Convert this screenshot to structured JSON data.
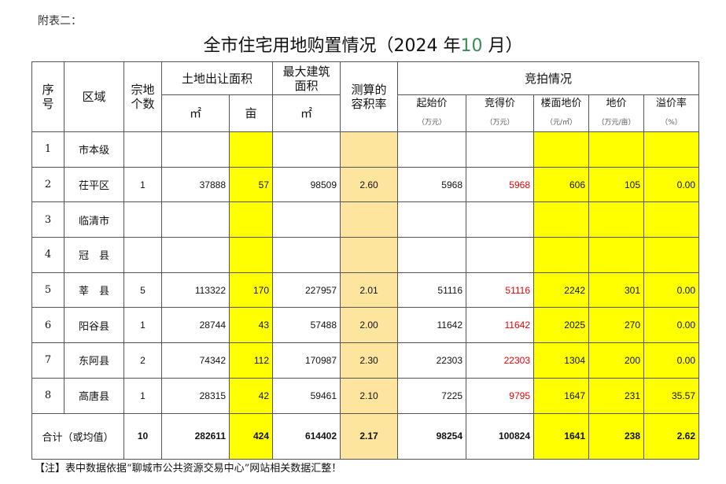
{
  "lead": "附表二：",
  "title": {
    "main": "全市住宅用地购置情况（2024 年",
    "month": "10",
    "suffix": " 月）"
  },
  "headers": {
    "seq": "序号",
    "region": "区域",
    "count": "宗地个数",
    "land_area": "土地出让面积",
    "sqm": "㎡",
    "mu": "亩",
    "max_build": "最大建筑面积",
    "max_build_unit": "㎡",
    "far": "测算的容积率",
    "auction": "竞拍情况",
    "start_price": "起始价",
    "start_unit": "（万元）",
    "deal_price": "竞得价",
    "deal_unit": "（万元）",
    "floor_price": "楼面地价",
    "floor_unit": "（元/㎡）",
    "land_price": "地价",
    "land_unit": "（万元/亩）",
    "premium": "溢价率",
    "premium_unit": "（%）"
  },
  "rows": [
    [
      "1",
      "市本级",
      "",
      "",
      "",
      "",
      "",
      "",
      "",
      "",
      "",
      ""
    ],
    [
      "2",
      "茌平区",
      "1",
      "37888",
      "57",
      "98509",
      "2.60",
      "5968",
      "5968",
      "606",
      "105",
      "0.00"
    ],
    [
      "3",
      "临清市",
      "",
      "",
      "",
      "",
      "",
      "",
      "",
      "",
      "",
      ""
    ],
    [
      "4",
      "冠　县",
      "",
      "",
      "",
      "",
      "",
      "",
      "",
      "",
      "",
      ""
    ],
    [
      "5",
      "莘　县",
      "5",
      "113322",
      "170",
      "227957",
      "2.01",
      "51116",
      "51116",
      "2242",
      "301",
      "0.00"
    ],
    [
      "6",
      "阳谷县",
      "1",
      "28744",
      "43",
      "57488",
      "2.00",
      "11642",
      "11642",
      "2025",
      "270",
      "0.00"
    ],
    [
      "7",
      "东阿县",
      "2",
      "74342",
      "112",
      "170987",
      "2.30",
      "22303",
      "22303",
      "1304",
      "200",
      "0.00"
    ],
    [
      "8",
      "高唐县",
      "1",
      "28315",
      "42",
      "59461",
      "2.10",
      "7225",
      "9795",
      "1647",
      "231",
      "35.57"
    ]
  ],
  "total": [
    "合计（或均值）",
    "10",
    "282611",
    "424",
    "614402",
    "2.17",
    "98254",
    "100824",
    "1641",
    "238",
    "2.62"
  ],
  "note": "【注】表中数据依据“聊城市公共资源交易中心”网站相关数据汇整！"
}
